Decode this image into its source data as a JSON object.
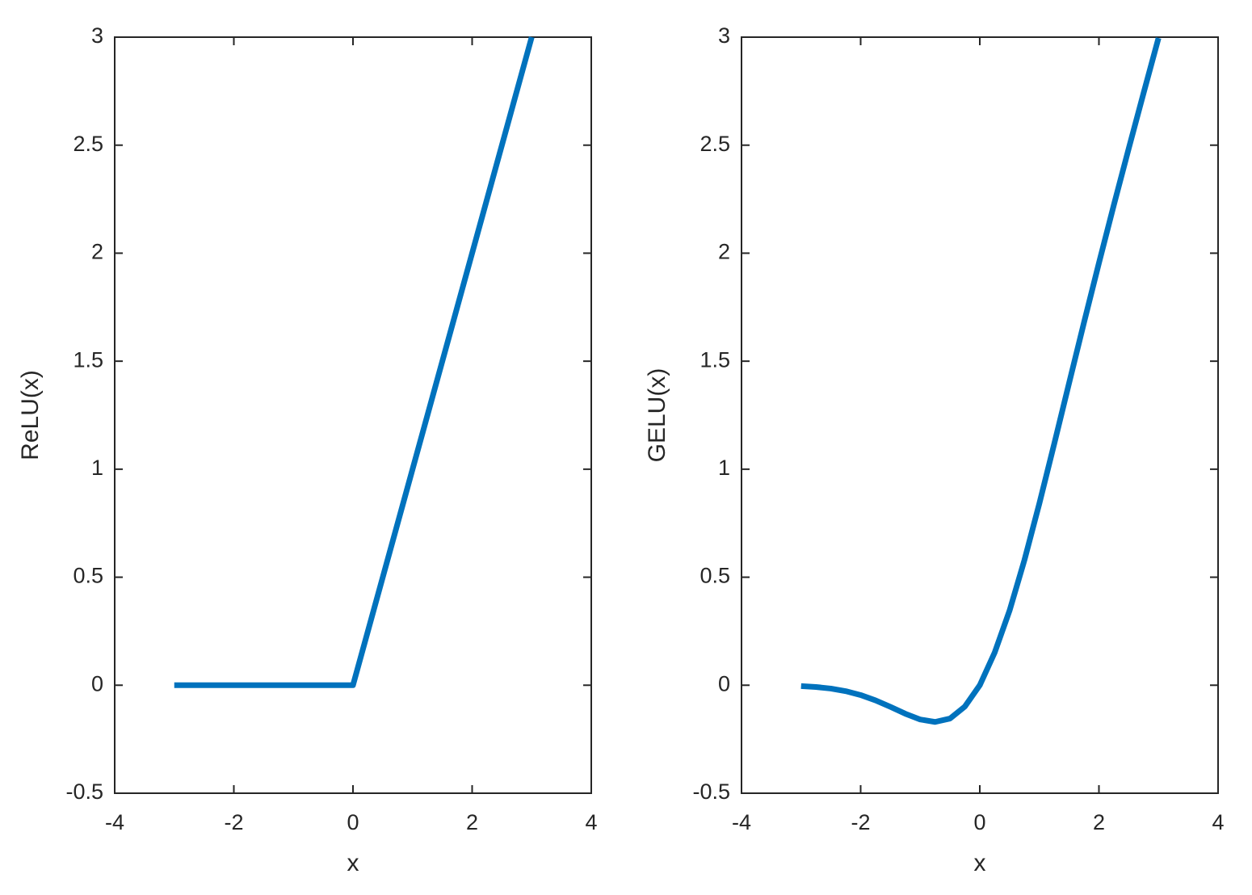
{
  "chart_data": [
    {
      "type": "line",
      "xlabel": "x",
      "ylabel": "ReLU(x)",
      "x": [
        -3,
        0,
        3
      ],
      "series": [
        {
          "color": "#0072bd",
          "values": [
            0,
            0,
            3
          ]
        }
      ],
      "xlim": [
        -4,
        4
      ],
      "xticks": [
        -4,
        -2,
        0,
        2,
        4
      ],
      "ylim": [
        -0.5,
        3
      ],
      "yticks": [
        -0.5,
        0,
        0.5,
        1,
        1.5,
        2,
        2.5,
        3
      ]
    },
    {
      "type": "line",
      "xlabel": "x",
      "ylabel": "GELU(x)",
      "x": [
        -3,
        -2.75,
        -2.5,
        -2.25,
        -2,
        -1.75,
        -1.5,
        -1.25,
        -1,
        -0.75,
        -0.5,
        -0.25,
        0,
        0.25,
        0.5,
        0.75,
        1,
        1.25,
        1.5,
        1.75,
        2,
        2.25,
        2.5,
        2.75,
        3
      ],
      "series": [
        {
          "color": "#0072bd",
          "values": [
            -0.004,
            -0.0082,
            -0.0155,
            -0.0275,
            -0.0455,
            -0.0702,
            -0.1002,
            -0.132,
            -0.1587,
            -0.17,
            -0.1543,
            -0.0987,
            0,
            0.1513,
            0.3457,
            0.58,
            0.8413,
            1.118,
            1.3998,
            1.6798,
            1.9545,
            2.2225,
            2.4845,
            2.7418,
            2.996
          ]
        }
      ],
      "xlim": [
        -4,
        4
      ],
      "xticks": [
        -4,
        -2,
        0,
        2,
        4
      ],
      "ylim": [
        -0.5,
        3
      ],
      "yticks": [
        -0.5,
        0,
        0.5,
        1,
        1.5,
        2,
        2.5,
        3
      ]
    }
  ]
}
